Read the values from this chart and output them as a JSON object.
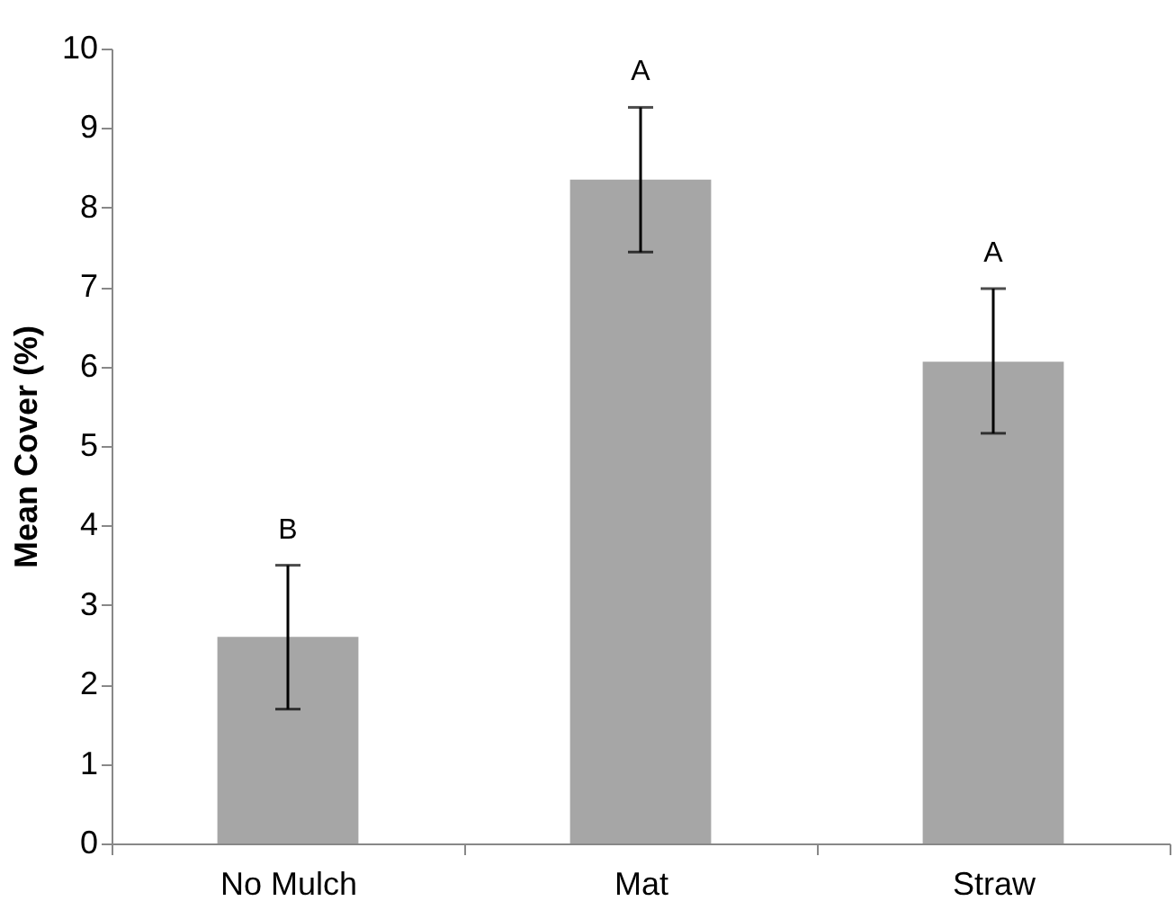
{
  "chart_data": {
    "type": "bar",
    "ylabel": "Mean Cover (%)",
    "categories": [
      "No Mulch",
      "Mat",
      "Straw"
    ],
    "values": [
      2.6,
      8.35,
      6.06
    ],
    "color": "#a6a6a6",
    "errors": [
      [
        1.69,
        3.5
      ],
      [
        7.44,
        9.26
      ],
      [
        5.16,
        6.98
      ]
    ],
    "ylim": [
      0,
      10
    ],
    "yticks": [
      0,
      1,
      2,
      3,
      4,
      5,
      6,
      7,
      8,
      9,
      10
    ],
    "grid": false,
    "annotations": [
      {
        "text": "B",
        "x": "No Mulch",
        "y": 3.5
      },
      {
        "text": "A",
        "x": "Mat",
        "y": 9.26
      },
      {
        "text": "A",
        "x": "Straw",
        "y": 6.98
      }
    ]
  }
}
